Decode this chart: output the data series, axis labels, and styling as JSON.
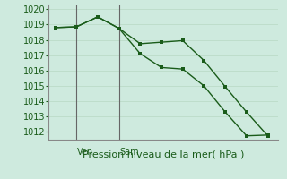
{
  "line1_x": [
    0,
    1,
    2,
    3,
    4,
    5,
    6,
    7,
    8,
    9,
    10
  ],
  "line1_y": [
    1018.8,
    1018.85,
    1019.5,
    1018.75,
    1017.75,
    1017.85,
    1017.95,
    1016.65,
    1014.95,
    1013.3,
    1011.75
  ],
  "line2_x": [
    0,
    1,
    2,
    3,
    4,
    5,
    6,
    7,
    8,
    9,
    10
  ],
  "line2_y": [
    1018.8,
    1018.85,
    1019.5,
    1018.75,
    1017.1,
    1016.2,
    1016.1,
    1015.0,
    1013.3,
    1011.75,
    1011.8
  ],
  "line_color": "#1a5c1a",
  "bg_color": "#ceeade",
  "grid_color_major": "#b8d8c4",
  "grid_color_minor": "#d0e8d8",
  "xlabel": "Pression niveau de la mer( hPa )",
  "ylim": [
    1011.5,
    1020.25
  ],
  "yticks": [
    1012,
    1013,
    1014,
    1015,
    1016,
    1017,
    1018,
    1019,
    1020
  ],
  "vline_positions": [
    1,
    3
  ],
  "vline_labels": [
    "Ven",
    "Sam"
  ],
  "xlim": [
    -0.3,
    10.5
  ],
  "xlabel_fontsize": 8,
  "ytick_fontsize": 7,
  "xtick_fontsize": 7
}
